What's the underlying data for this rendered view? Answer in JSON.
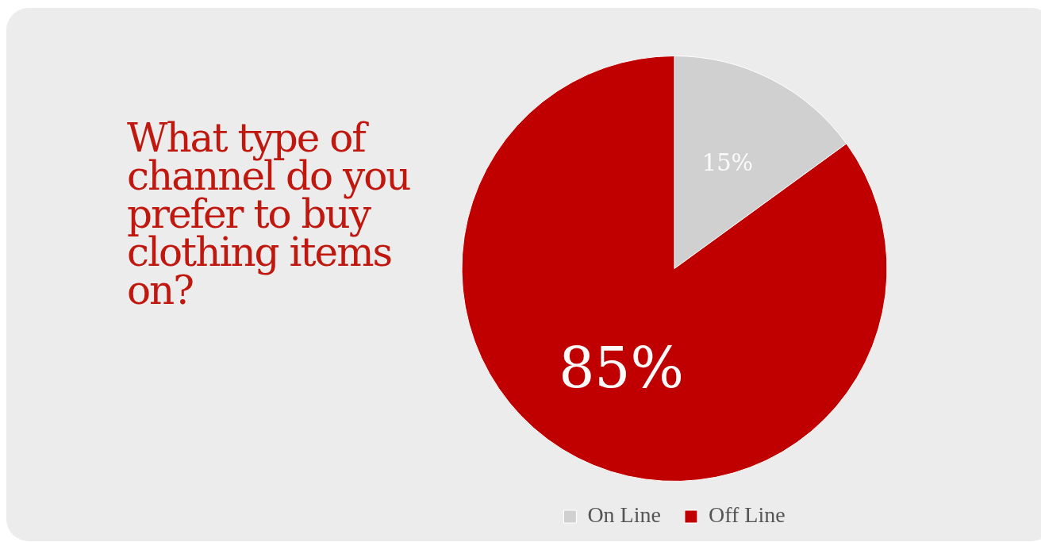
{
  "chart_data": {
    "type": "pie",
    "title": "What type of channel do you prefer to buy clothing items on?",
    "categories": [
      "On Line",
      "Off Line"
    ],
    "values": [
      15,
      85
    ],
    "colors": [
      "#d0d0d0",
      "#c00000"
    ],
    "value_labels": [
      "15%",
      "85%"
    ],
    "legend": "bottom"
  }
}
